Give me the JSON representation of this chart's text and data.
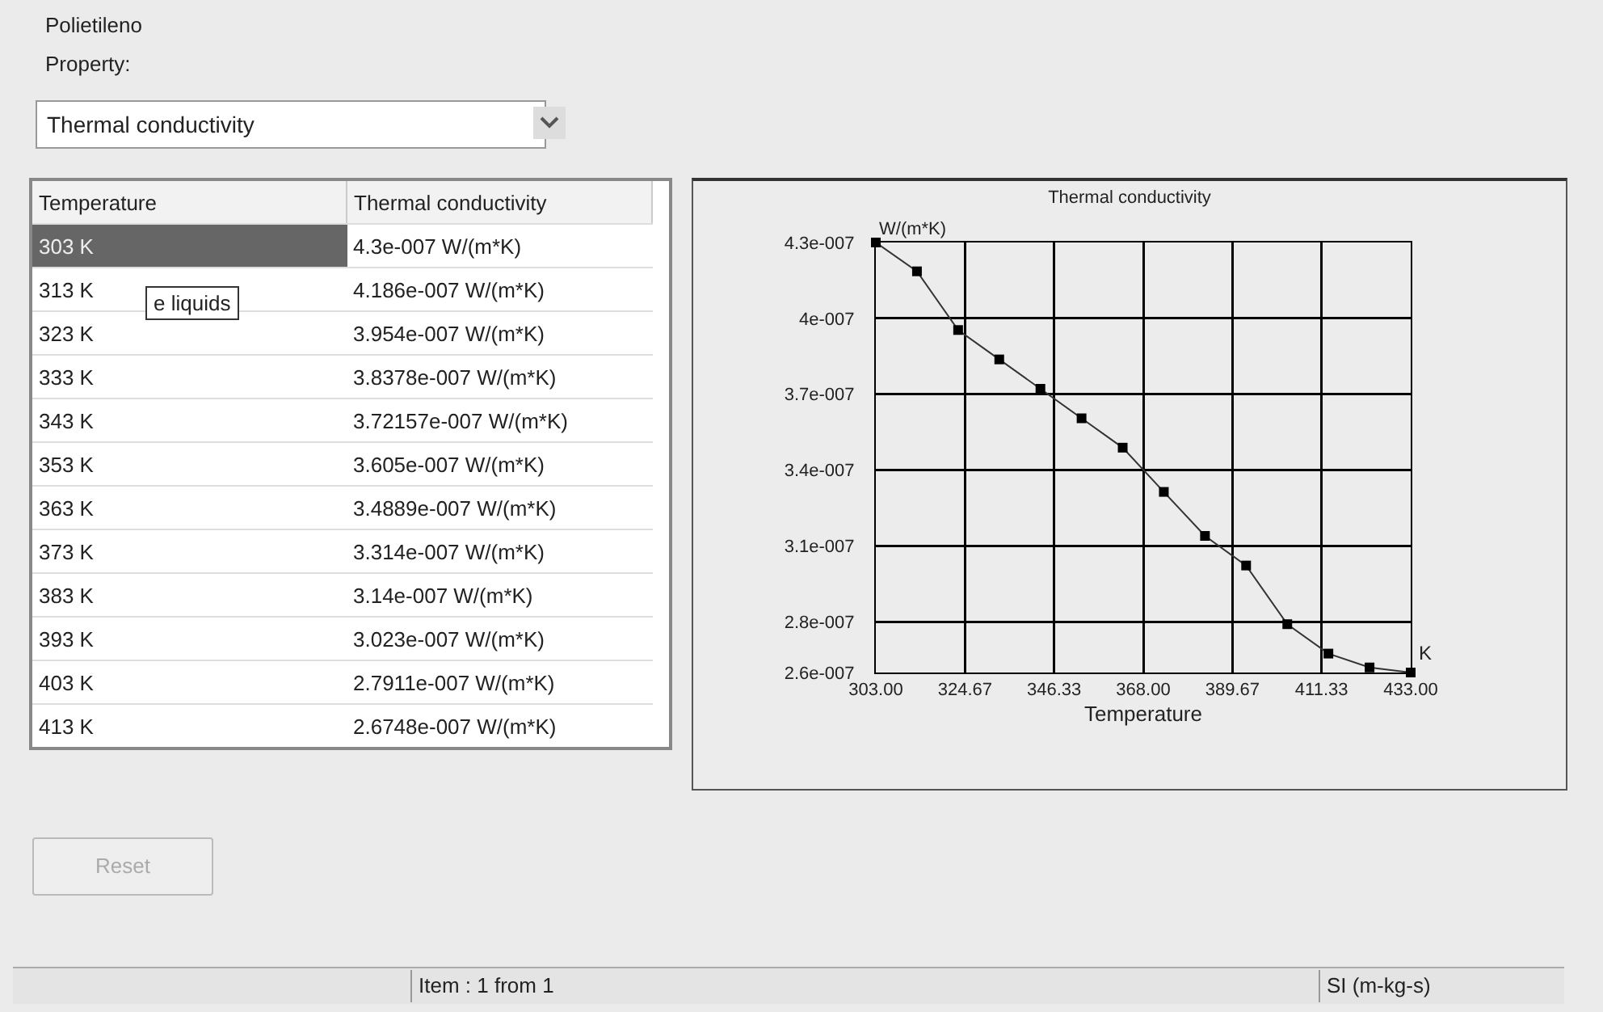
{
  "chart_data": {
    "type": "line",
    "title": "Thermal conductivity",
    "xlabel": "Temperature",
    "ylabel": "W/(m*K)",
    "x": [
      303,
      313,
      323,
      333,
      343,
      353,
      363,
      373,
      383,
      393,
      403,
      413,
      423,
      433
    ],
    "series": [
      {
        "color": "#000000",
        "values": [
          4.3e-07,
          4.186e-07,
          3.954e-07,
          3.8378e-07,
          3.72157e-07,
          3.605e-07,
          3.4889e-07,
          3.314e-07,
          3.14e-07,
          3.023e-07,
          2.7911e-07,
          2.6748e-07,
          2.62e-07,
          2.6e-07
        ]
      }
    ],
    "xlim": [
      303,
      433
    ],
    "xticks": [
      {
        "value": 303,
        "label": "303.00"
      },
      {
        "value": 324.67,
        "label": "324.67"
      },
      {
        "value": 346.33,
        "label": "346.33"
      },
      {
        "value": 368,
        "label": "368.00"
      },
      {
        "value": 389.67,
        "label": "389.67"
      },
      {
        "value": 411.33,
        "label": "411.33"
      },
      {
        "value": 433,
        "label": "433.00"
      }
    ],
    "ylim": [
      2.6e-07,
      4.3e-07
    ],
    "yticks": [
      {
        "value": 4.3e-07,
        "label": "4.3e-007"
      },
      {
        "value": 4e-07,
        "label": "4e-007"
      },
      {
        "value": 3.7e-07,
        "label": "3.7e-007"
      },
      {
        "value": 3.4e-07,
        "label": "3.4e-007"
      },
      {
        "value": 3.1e-07,
        "label": "3.1e-007"
      },
      {
        "value": 2.8e-07,
        "label": "2.8e-007"
      },
      {
        "value": 2.6e-07,
        "label": "2.6e-007"
      }
    ],
    "grid": true,
    "marker": "square",
    "line_style": "solid",
    "annotations": [
      "Polietileno",
      "Property:",
      "Thermal conductivity",
      "Temperature",
      "Thermal conductivity",
      "e liquids",
      "Reset",
      "Item : 1 from 1",
      "SI (m-kg-s)",
      "K",
      "303 K",
      "4.3e-007 W/(m*K)",
      "313 K",
      "4.186e-007 W/(m*K)",
      "323 K",
      "3.954e-007 W/(m*K)",
      "333 K",
      "3.8378e-007 W/(m*K)",
      "343 K",
      "3.72157e-007 W/(m*K)",
      "353 K",
      "3.605e-007 W/(m*K)",
      "363 K",
      "3.4889e-007 W/(m*K)",
      "373 K",
      "3.314e-007 W/(m*K)",
      "383 K",
      "3.14e-007 W/(m*K)",
      "393 K",
      "3.023e-007 W/(m*K)",
      "403 K",
      "2.7911e-007 W/(m*K)",
      "413 K",
      "2.6748e-007 W/(m*K)"
    ]
  }
}
